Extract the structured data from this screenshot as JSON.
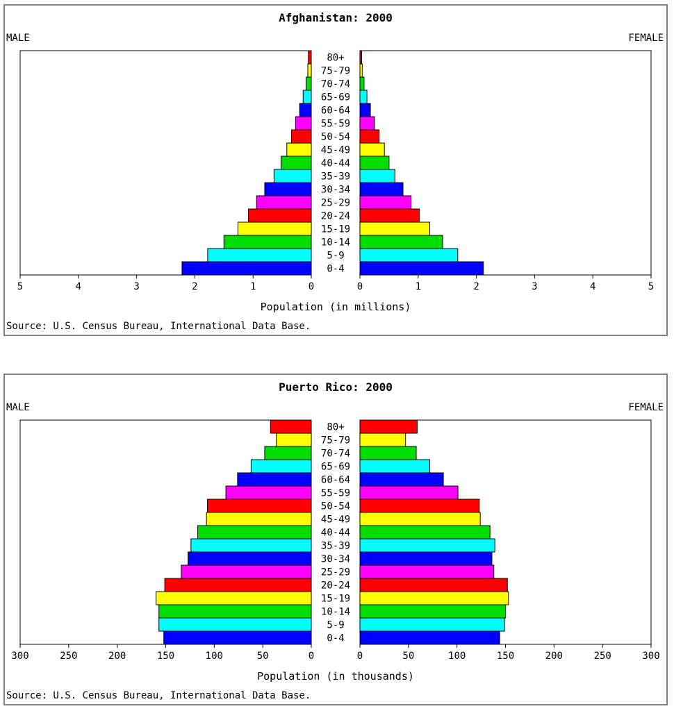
{
  "chart_data": [
    {
      "type": "bar",
      "title": "Afghanistan: 2000",
      "left_label": "MALE",
      "right_label": "FEMALE",
      "xlabel": "Population (in millions)",
      "source": "Source: U.S. Census Bureau, International Data Base.",
      "xlim": [
        0,
        5
      ],
      "tick_labels": [
        "0",
        "1",
        "2",
        "3",
        "4",
        "5"
      ],
      "categories": [
        "80+",
        "75-79",
        "70-74",
        "65-69",
        "60-64",
        "55-59",
        "50-54",
        "45-49",
        "40-44",
        "35-39",
        "30-34",
        "25-29",
        "20-24",
        "15-19",
        "10-14",
        "5-9",
        "0-4"
      ],
      "series": [
        {
          "name": "MALE",
          "values": [
            0.05,
            0.06,
            0.09,
            0.14,
            0.2,
            0.27,
            0.34,
            0.42,
            0.52,
            0.64,
            0.8,
            0.94,
            1.08,
            1.26,
            1.5,
            1.78,
            2.22
          ]
        },
        {
          "name": "FEMALE",
          "values": [
            0.03,
            0.04,
            0.07,
            0.12,
            0.18,
            0.25,
            0.33,
            0.42,
            0.5,
            0.6,
            0.74,
            0.88,
            1.02,
            1.2,
            1.42,
            1.68,
            2.12
          ]
        }
      ]
    },
    {
      "type": "bar",
      "title": "Puerto Rico: 2000",
      "left_label": "MALE",
      "right_label": "FEMALE",
      "xlabel": "Population (in thousands)",
      "source": "Source: U.S. Census Bureau, International Data Base.",
      "xlim": [
        0,
        300
      ],
      "tick_labels": [
        "0",
        "50",
        "100",
        "150",
        "200",
        "250",
        "300"
      ],
      "categories": [
        "80+",
        "75-79",
        "70-74",
        "65-69",
        "60-64",
        "55-59",
        "50-54",
        "45-49",
        "40-44",
        "35-39",
        "30-34",
        "25-29",
        "20-24",
        "15-19",
        "10-14",
        "5-9",
        "0-4"
      ],
      "series": [
        {
          "name": "MALE",
          "values": [
            42,
            36,
            48,
            62,
            76,
            88,
            107,
            108,
            117,
            124,
            127,
            134,
            151,
            160,
            157,
            157,
            152
          ]
        },
        {
          "name": "FEMALE",
          "values": [
            59,
            47,
            58,
            72,
            86,
            101,
            123,
            124,
            134,
            139,
            136,
            138,
            152,
            153,
            150,
            149,
            144
          ]
        }
      ]
    }
  ],
  "colors": [
    "#ff0000",
    "#ffff00",
    "#00dd00",
    "#00ffff",
    "#0000ff",
    "#ff00ff"
  ]
}
